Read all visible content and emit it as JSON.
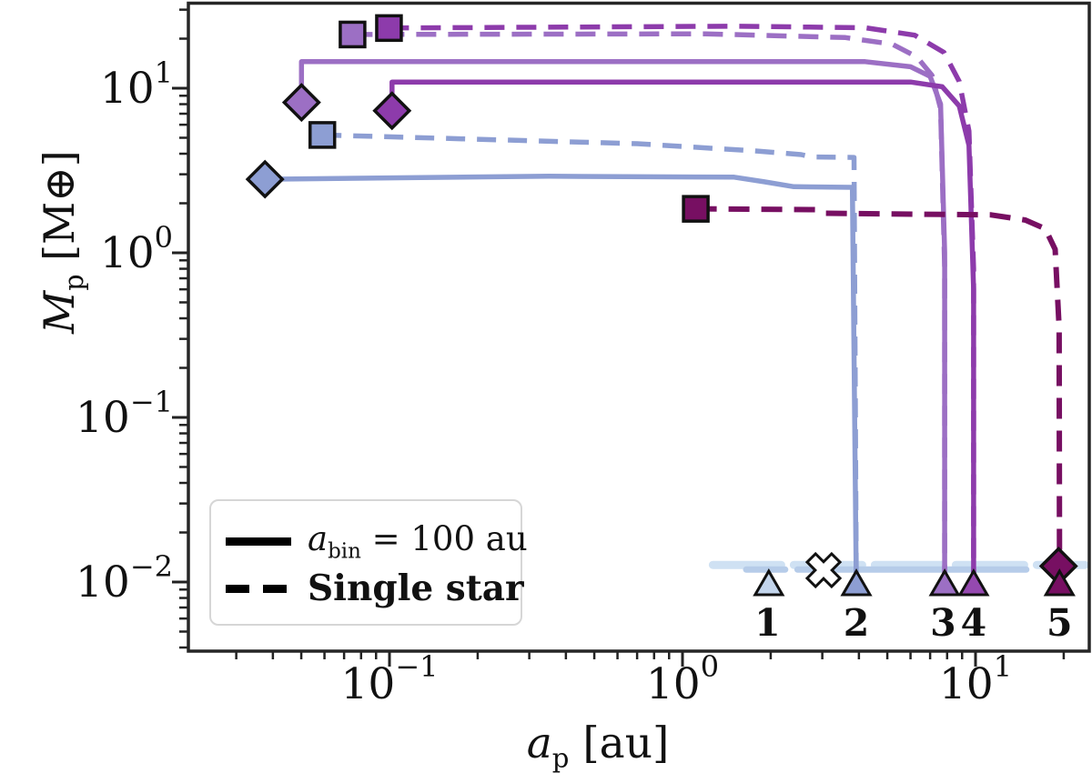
{
  "chart_data": {
    "type": "line",
    "xscale": "log",
    "yscale": "log",
    "xlim": [
      0.0207,
      24.4
    ],
    "ylim": [
      0.0039,
      33.2
    ],
    "grid": false,
    "xlabel": {
      "var": "a",
      "sub": "p",
      "rest": " [au]"
    },
    "ylabel": {
      "var": "M",
      "sub": "p",
      "rest": " [M⊕]"
    },
    "x_axis": {
      "ticks": [
        {
          "v": 0.1,
          "base": "10",
          "exp": "−1"
        },
        {
          "v": 1,
          "base": "10",
          "exp": "0"
        },
        {
          "v": 10,
          "base": "10",
          "exp": "1"
        }
      ]
    },
    "y_axis": {
      "ticks": [
        {
          "v": 0.01,
          "base": "10",
          "exp": "−2"
        },
        {
          "v": 0.1,
          "base": "10",
          "exp": "−1"
        },
        {
          "v": 1,
          "base": "10",
          "exp": "0"
        },
        {
          "v": 10,
          "base": "10",
          "exp": "1"
        }
      ]
    },
    "legend": [
      {
        "sample": "solid",
        "label_var": "a",
        "label_sub": "bin",
        "label_rest": " = 100 au"
      },
      {
        "sample": "dashed",
        "label": "Single star"
      }
    ],
    "colors": {
      "planet1_light": "#cfe1f3",
      "planet1_dark": "#b6cce9",
      "planet1_triangle": "#c3d5ec",
      "planet2": "#8d9ed3",
      "planet3": "#9c6fc4",
      "planet4": "#8d3bab",
      "planet4_triangle": "#9549b0",
      "planet5": "#770f62",
      "marker_edge": "#111111"
    },
    "series": [
      {
        "name": "planet1-single-track",
        "planet": "1",
        "case": "single",
        "style": "dashed",
        "color": "#cfe1f3",
        "width": 9,
        "dash": "75 14",
        "cap": "round",
        "points": [
          [
            1.27,
            0.0127
          ],
          [
            23.6,
            0.0127
          ]
        ]
      },
      {
        "name": "planet1-binary-track-a",
        "planet": "1",
        "case": "binary",
        "style": "solid",
        "color": "#b6cce9",
        "width": 7,
        "dash": "",
        "cap": "round",
        "points": [
          [
            1.65,
            0.0119
          ],
          [
            2.24,
            0.0119
          ]
        ]
      },
      {
        "name": "planet1-binary-track-b",
        "planet": "1",
        "case": "binary",
        "style": "solid",
        "color": "#b6cce9",
        "width": 7,
        "dash": "",
        "cap": "round",
        "points": [
          [
            2.47,
            0.0119
          ],
          [
            14.9,
            0.0119
          ]
        ]
      },
      {
        "name": "planet2-single-track",
        "planet": "2",
        "case": "single",
        "style": "dashed",
        "color": "#8d9ed3",
        "width": 5.5,
        "dash": "21 13",
        "cap": "butt",
        "points": [
          [
            0.059,
            5.2
          ],
          [
            0.7,
            4.6
          ],
          [
            1.8,
            4.15
          ],
          [
            2.54,
            3.95
          ],
          [
            2.75,
            3.82
          ],
          [
            3.85,
            3.8
          ],
          [
            3.92,
            0.0095
          ]
        ]
      },
      {
        "name": "planet2-binary-track",
        "planet": "2",
        "case": "binary",
        "style": "solid",
        "color": "#8d9ed3",
        "width": 5.5,
        "dash": "",
        "cap": "butt",
        "points": [
          [
            0.0376,
            2.8
          ],
          [
            0.35,
            2.92
          ],
          [
            1.5,
            2.88
          ],
          [
            1.9,
            2.7
          ],
          [
            2.4,
            2.52
          ],
          [
            3.8,
            2.5
          ],
          [
            3.92,
            0.0095
          ]
        ]
      },
      {
        "name": "planet3-single-track",
        "planet": "3",
        "case": "single",
        "style": "dashed",
        "color": "#9c6fc4",
        "width": 5.5,
        "dash": "22 13",
        "cap": "butt",
        "points": [
          [
            0.0748,
            21.2
          ],
          [
            1.2,
            21.4
          ],
          [
            3.6,
            20.3
          ],
          [
            5.2,
            18.5
          ],
          [
            6.3,
            15.5
          ],
          [
            7.1,
            12.0
          ],
          [
            7.6,
            7.5
          ],
          [
            7.85,
            0.8
          ],
          [
            7.85,
            0.0095
          ]
        ]
      },
      {
        "name": "planet3-binary-track",
        "planet": "3",
        "case": "binary",
        "style": "solid",
        "color": "#9c6fc4",
        "width": 5.5,
        "dash": "",
        "cap": "butt",
        "points": [
          [
            0.0501,
            8.2
          ],
          [
            0.0501,
            14.5
          ],
          [
            4.2,
            14.5
          ],
          [
            6.0,
            13.5
          ],
          [
            7.0,
            11.8
          ],
          [
            7.6,
            8.0
          ],
          [
            7.85,
            1.0
          ],
          [
            7.85,
            0.0095
          ]
        ]
      },
      {
        "name": "planet4-single-track",
        "planet": "4",
        "case": "single",
        "style": "dashed",
        "color": "#8d3bab",
        "width": 5.5,
        "dash": "22 13",
        "cap": "butt",
        "points": [
          [
            0.0996,
            23.2
          ],
          [
            1.5,
            23.8
          ],
          [
            4.2,
            23.3
          ],
          [
            6.2,
            21.0
          ],
          [
            7.8,
            16.5
          ],
          [
            8.8,
            11.0
          ],
          [
            9.5,
            5.5
          ],
          [
            9.85,
            0.8
          ],
          [
            9.85,
            0.0095
          ]
        ]
      },
      {
        "name": "planet4-binary-track",
        "planet": "4",
        "case": "binary",
        "style": "solid",
        "color": "#8d3bab",
        "width": 5.5,
        "dash": "",
        "cap": "butt",
        "points": [
          [
            0.102,
            7.3
          ],
          [
            0.102,
            10.9
          ],
          [
            6.0,
            10.9
          ],
          [
            7.7,
            10.2
          ],
          [
            8.8,
            7.8
          ],
          [
            9.5,
            4.5
          ],
          [
            9.85,
            0.6
          ],
          [
            9.85,
            0.0095
          ]
        ]
      },
      {
        "name": "planet5-single-track",
        "planet": "5",
        "case": "single",
        "style": "dashed",
        "color": "#770f62",
        "width": 6,
        "dash": "23 13",
        "cap": "butt",
        "points": [
          [
            1.11,
            1.85
          ],
          [
            2.88,
            1.83
          ],
          [
            3.05,
            1.74
          ],
          [
            11.3,
            1.7
          ],
          [
            14.8,
            1.58
          ],
          [
            17.3,
            1.4
          ],
          [
            18.7,
            1.05
          ],
          [
            19.3,
            0.35
          ],
          [
            19.35,
            0.0125
          ]
        ]
      }
    ],
    "markers": [
      {
        "name": "planet2-final-square",
        "shape": "square",
        "color": "#8d9ed3",
        "a": 0.059,
        "m": 5.2
      },
      {
        "name": "planet3-final-square",
        "shape": "square",
        "color": "#9c6fc4",
        "a": 0.0748,
        "m": 21.2
      },
      {
        "name": "planet4-final-square",
        "shape": "square",
        "color": "#8d3bab",
        "a": 0.0996,
        "m": 23.2
      },
      {
        "name": "planet5-final-square",
        "shape": "square",
        "color": "#770f62",
        "a": 1.11,
        "m": 1.85
      },
      {
        "name": "planet2-final-diamond",
        "shape": "diamond",
        "color": "#8d9ed3",
        "a": 0.0376,
        "m": 2.8
      },
      {
        "name": "planet3-final-diamond",
        "shape": "diamond",
        "color": "#9c6fc4",
        "a": 0.0501,
        "m": 8.2
      },
      {
        "name": "planet4-final-diamond",
        "shape": "diamond",
        "color": "#8d3bab",
        "a": 0.102,
        "m": 7.3
      },
      {
        "name": "planet5-final-diamond",
        "shape": "diamond",
        "color": "#770f62",
        "a": 19.2,
        "m": 0.0125
      },
      {
        "name": "planet1-start-triangle",
        "shape": "triangle",
        "color": "#c3d5ec",
        "a": 1.97,
        "m": 0.0095
      },
      {
        "name": "planet2-start-triangle",
        "shape": "triangle",
        "color": "#8d9ed3",
        "a": 3.92,
        "m": 0.0095
      },
      {
        "name": "planet3-start-triangle",
        "shape": "triangle",
        "color": "#9c6fc4",
        "a": 7.85,
        "m": 0.0095
      },
      {
        "name": "planet4-start-triangle",
        "shape": "triangle",
        "color": "#9549b0",
        "a": 9.85,
        "m": 0.0095
      },
      {
        "name": "planet5-start-triangle",
        "shape": "triangle",
        "color": "#770f62",
        "a": 19.35,
        "m": 0.0095
      },
      {
        "name": "planet1-ejected-x",
        "shape": "x",
        "color": "#ffffff",
        "a": 3.03,
        "m": 0.0118
      }
    ],
    "annotations": [
      {
        "text": "1",
        "a": 1.95,
        "m": 0.0057
      },
      {
        "text": "2",
        "a": 3.92,
        "m": 0.0057
      },
      {
        "text": "3",
        "a": 7.75,
        "m": 0.0057
      },
      {
        "text": "4",
        "a": 9.85,
        "m": 0.0057
      },
      {
        "text": "5",
        "a": 19.35,
        "m": 0.0057
      }
    ]
  }
}
